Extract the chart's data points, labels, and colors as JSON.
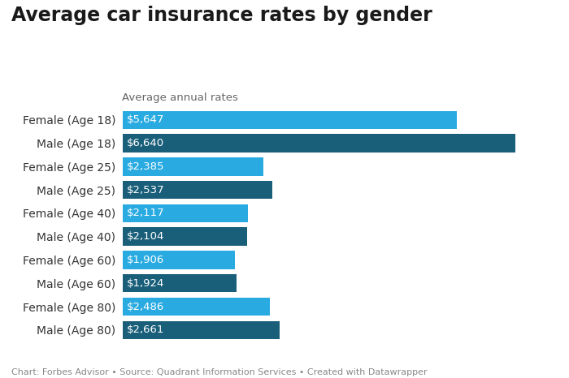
{
  "title": "Average car insurance rates by gender",
  "subtitle": "Average annual rates",
  "footnote": "Chart: Forbes Advisor • Source: Quadrant Information Services • Created with Datawrapper",
  "categories": [
    "Female (Age 18)",
    "Male (Age 18)",
    "Female (Age 25)",
    "Male (Age 25)",
    "Female (Age 40)",
    "Male (Age 40)",
    "Female (Age 60)",
    "Male (Age 60)",
    "Female (Age 80)",
    "Male (Age 80)"
  ],
  "values": [
    5647,
    6640,
    2385,
    2537,
    2117,
    2104,
    1906,
    1924,
    2486,
    2661
  ],
  "labels": [
    "$5,647",
    "$6,640",
    "$2,385",
    "$2,537",
    "$2,117",
    "$2,104",
    "$1,906",
    "$1,924",
    "$2,486",
    "$2,661"
  ],
  "colors": [
    "#29abe2",
    "#1a5f7a",
    "#29abe2",
    "#1a5f7a",
    "#29abe2",
    "#1a5f7a",
    "#29abe2",
    "#1a5f7a",
    "#29abe2",
    "#1a5f7a"
  ],
  "background_color": "#ffffff",
  "title_fontsize": 17,
  "subtitle_fontsize": 9.5,
  "label_fontsize": 9.5,
  "ytick_fontsize": 10,
  "footnote_fontsize": 8,
  "bar_height": 0.78,
  "xlim": [
    0,
    7400
  ]
}
